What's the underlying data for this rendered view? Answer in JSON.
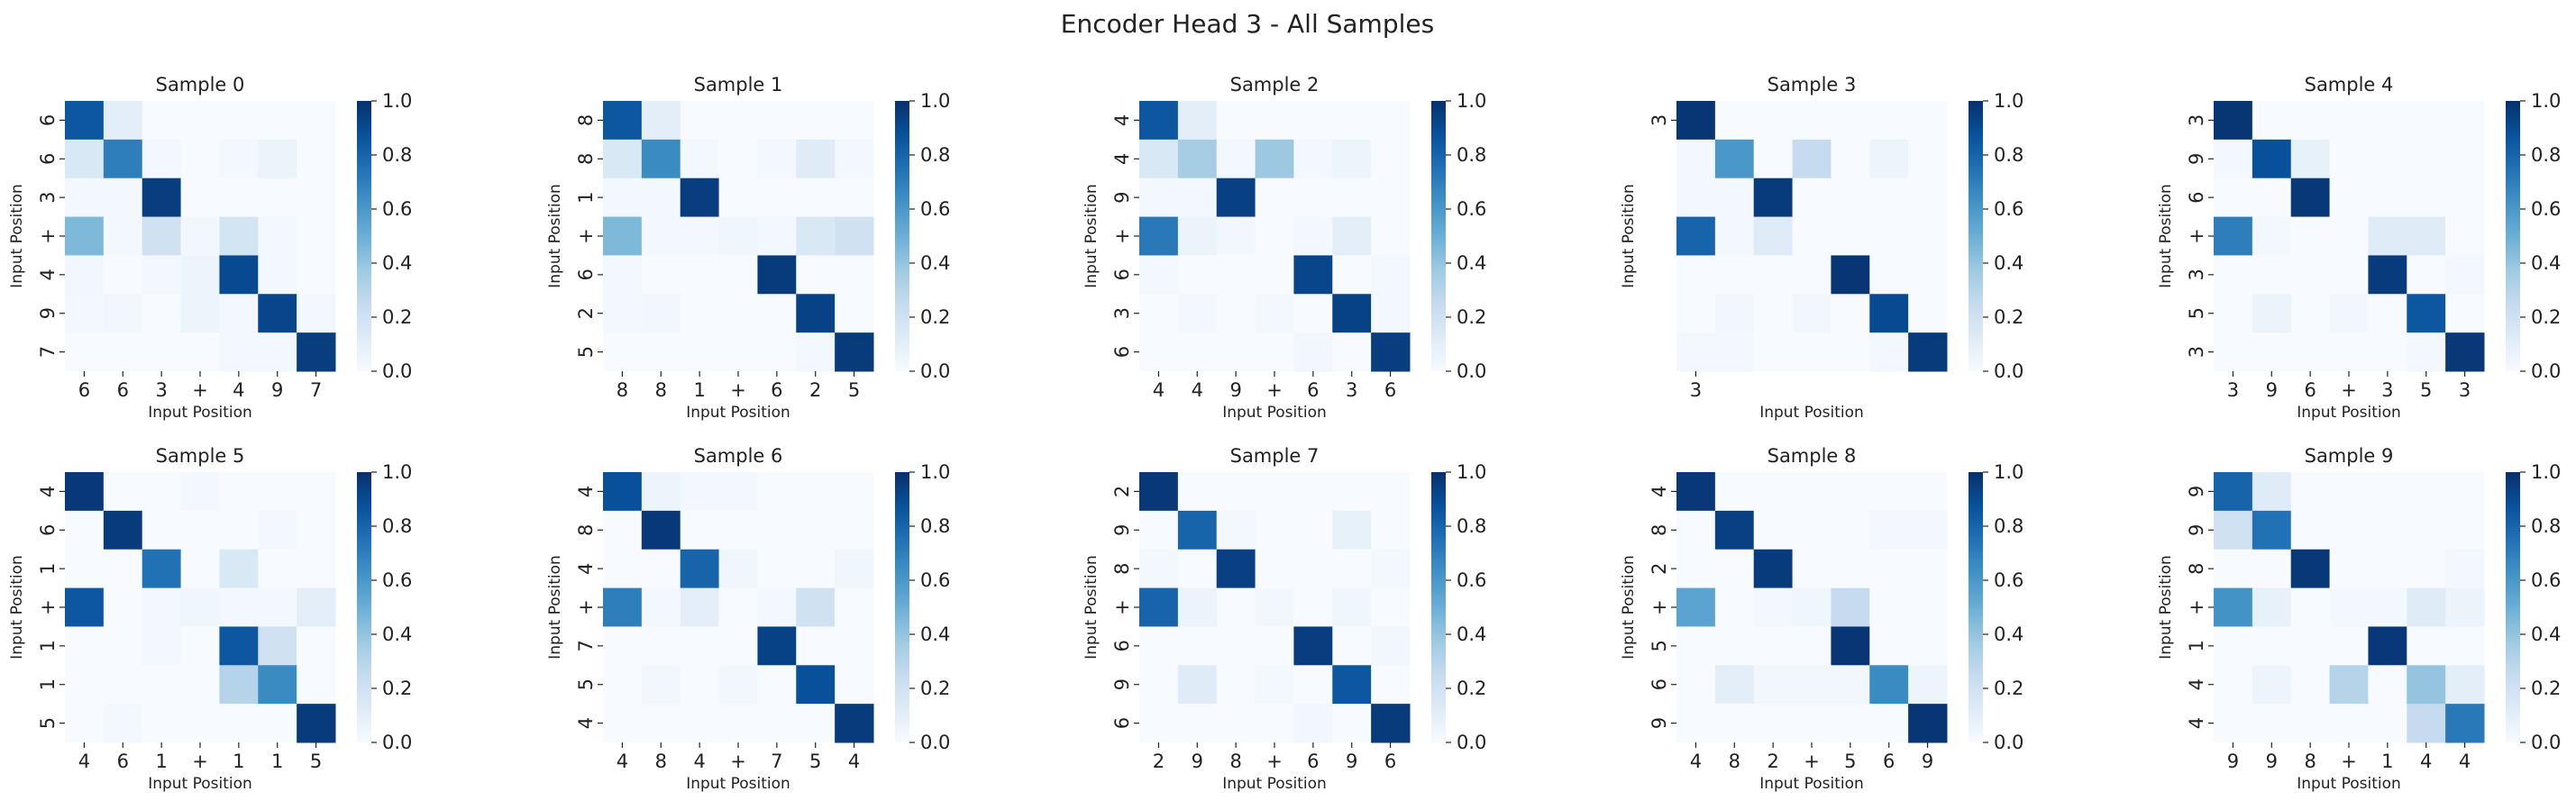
{
  "chart_data": {
    "type": "heatmap",
    "title": "Encoder Head 3 - All Samples",
    "xlabel": "Input Position",
    "ylabel": "Input Position",
    "colormap": "Blues",
    "vmin": 0,
    "vmax": 1,
    "colorbar_ticks": [
      "0.0",
      "0.2",
      "0.4",
      "0.6",
      "0.8",
      "1.0"
    ],
    "panels": [
      {
        "title": "Sample 0",
        "tokens": [
          "6",
          "6",
          "3",
          "+",
          "4",
          "9",
          "7"
        ],
        "matrix": [
          [
            0.85,
            0.1,
            0,
            0,
            0,
            0,
            0
          ],
          [
            0.15,
            0.7,
            0.02,
            0,
            0.02,
            0.06,
            0
          ],
          [
            0.02,
            0.02,
            0.95,
            0,
            0,
            0,
            0
          ],
          [
            0.45,
            0.02,
            0.2,
            0.03,
            0.18,
            0.02,
            0
          ],
          [
            0.03,
            0,
            0.02,
            0.05,
            0.9,
            0.02,
            0
          ],
          [
            0.02,
            0.03,
            0,
            0.05,
            0.02,
            0.92,
            0.02
          ],
          [
            0,
            0,
            0,
            0,
            0.02,
            0.02,
            0.95
          ]
        ]
      },
      {
        "title": "Sample 1",
        "tokens": [
          "8",
          "8",
          "1",
          "+",
          "6",
          "2",
          "5"
        ],
        "matrix": [
          [
            0.85,
            0.1,
            0,
            0,
            0,
            0,
            0
          ],
          [
            0.15,
            0.65,
            0.02,
            0,
            0.02,
            0.12,
            0.02
          ],
          [
            0.02,
            0.02,
            0.95,
            0,
            0,
            0,
            0
          ],
          [
            0.45,
            0.02,
            0.02,
            0.04,
            0.02,
            0.15,
            0.2
          ],
          [
            0.02,
            0,
            0,
            0,
            0.96,
            0,
            0
          ],
          [
            0.02,
            0.03,
            0,
            0,
            0,
            0.93,
            0
          ],
          [
            0,
            0,
            0,
            0,
            0,
            0.02,
            0.96
          ]
        ]
      },
      {
        "title": "Sample 2",
        "tokens": [
          "4",
          "4",
          "9",
          "+",
          "6",
          "3",
          "6"
        ],
        "matrix": [
          [
            0.85,
            0.1,
            0,
            0,
            0,
            0,
            0
          ],
          [
            0.15,
            0.35,
            0.02,
            0.38,
            0.02,
            0.05,
            0
          ],
          [
            0.02,
            0.02,
            0.94,
            0,
            0,
            0,
            0
          ],
          [
            0.72,
            0.06,
            0.03,
            0,
            0.02,
            0.1,
            0
          ],
          [
            0.02,
            0,
            0,
            0,
            0.92,
            0,
            0.02
          ],
          [
            0,
            0.02,
            0,
            0.02,
            0,
            0.93,
            0.02
          ],
          [
            0,
            0,
            0,
            0,
            0.03,
            0,
            0.95
          ]
        ]
      },
      {
        "title": "Sample 3",
        "tokens": [
          "3",
          "",
          "",
          "",
          "",
          "",
          ""
        ],
        "matrix": [
          [
            0.98,
            0,
            0,
            0,
            0,
            0,
            0
          ],
          [
            0.02,
            0.6,
            0,
            0.25,
            0,
            0.05,
            0
          ],
          [
            0.02,
            0.02,
            0.96,
            0,
            0,
            0,
            0
          ],
          [
            0.8,
            0.02,
            0.12,
            0,
            0,
            0,
            0
          ],
          [
            0,
            0,
            0,
            0,
            0.98,
            0,
            0
          ],
          [
            0,
            0.03,
            0,
            0.03,
            0,
            0.9,
            0
          ],
          [
            0.02,
            0.02,
            0,
            0,
            0,
            0.02,
            0.96
          ]
        ]
      },
      {
        "title": "Sample 4",
        "tokens": [
          "3",
          "9",
          "6",
          "+",
          "3",
          "5",
          "3"
        ],
        "matrix": [
          [
            0.98,
            0,
            0,
            0,
            0,
            0,
            0
          ],
          [
            0.02,
            0.88,
            0.08,
            0,
            0,
            0,
            0
          ],
          [
            0,
            0,
            0.97,
            0,
            0,
            0,
            0
          ],
          [
            0.7,
            0.02,
            0,
            0,
            0.12,
            0.12,
            0
          ],
          [
            0,
            0,
            0,
            0,
            0.96,
            0,
            0.02
          ],
          [
            0,
            0.06,
            0,
            0.03,
            0,
            0.85,
            0
          ],
          [
            0,
            0,
            0,
            0,
            0,
            0.02,
            0.97
          ]
        ]
      },
      {
        "title": "Sample 5",
        "tokens": [
          "4",
          "6",
          "1",
          "+",
          "1",
          "1",
          "5"
        ],
        "matrix": [
          [
            0.97,
            0,
            0,
            0.02,
            0,
            0,
            0
          ],
          [
            0,
            0.96,
            0,
            0,
            0,
            0.02,
            0
          ],
          [
            0,
            0,
            0.75,
            0,
            0.15,
            0,
            0
          ],
          [
            0.85,
            0,
            0.02,
            0.04,
            0.02,
            0.02,
            0.1
          ],
          [
            0,
            0,
            0.02,
            0,
            0.85,
            0.2,
            0
          ],
          [
            0,
            0,
            0,
            0,
            0.3,
            0.65,
            0
          ],
          [
            0,
            0.02,
            0,
            0,
            0,
            0,
            0.96
          ]
        ]
      },
      {
        "title": "Sample 6",
        "tokens": [
          "4",
          "8",
          "4",
          "+",
          "7",
          "5",
          "4"
        ],
        "matrix": [
          [
            0.88,
            0.05,
            0.02,
            0.02,
            0,
            0,
            0
          ],
          [
            0,
            0.97,
            0,
            0,
            0,
            0,
            0
          ],
          [
            0,
            0,
            0.8,
            0.04,
            0,
            0,
            0.04
          ],
          [
            0.7,
            0.02,
            0.1,
            0,
            0.02,
            0.2,
            0
          ],
          [
            0,
            0,
            0,
            0,
            0.93,
            0,
            0
          ],
          [
            0,
            0.03,
            0,
            0.03,
            0,
            0.88,
            0
          ],
          [
            0,
            0,
            0,
            0,
            0,
            0,
            0.96
          ]
        ]
      },
      {
        "title": "Sample 7",
        "tokens": [
          "2",
          "9",
          "8",
          "+",
          "6",
          "9",
          "6"
        ],
        "matrix": [
          [
            0.97,
            0,
            0,
            0,
            0,
            0,
            0
          ],
          [
            0,
            0.8,
            0.02,
            0,
            0,
            0.08,
            0
          ],
          [
            0.02,
            0,
            0.94,
            0,
            0,
            0,
            0.02
          ],
          [
            0.8,
            0.06,
            0,
            0.03,
            0,
            0.04,
            0
          ],
          [
            0,
            0,
            0,
            0,
            0.95,
            0,
            0.03
          ],
          [
            0,
            0.12,
            0,
            0.02,
            0,
            0.85,
            0
          ],
          [
            0,
            0,
            0,
            0,
            0.03,
            0,
            0.96
          ]
        ]
      },
      {
        "title": "Sample 8",
        "tokens": [
          "4",
          "8",
          "2",
          "+",
          "5",
          "6",
          "9"
        ],
        "matrix": [
          [
            0.97,
            0,
            0,
            0,
            0,
            0,
            0
          ],
          [
            0,
            0.94,
            0,
            0,
            0,
            0.02,
            0.02
          ],
          [
            0,
            0,
            0.96,
            0,
            0,
            0,
            0
          ],
          [
            0.55,
            0,
            0.02,
            0.04,
            0.25,
            0,
            0
          ],
          [
            0,
            0,
            0,
            0,
            0.98,
            0,
            0
          ],
          [
            0,
            0.1,
            0.03,
            0.03,
            0.03,
            0.65,
            0.05
          ],
          [
            0,
            0,
            0,
            0,
            0,
            0,
            0.98
          ]
        ]
      },
      {
        "title": "Sample 9",
        "tokens": [
          "9",
          "9",
          "8",
          "+",
          "1",
          "4",
          "4"
        ],
        "matrix": [
          [
            0.8,
            0.12,
            0,
            0,
            0,
            0,
            0
          ],
          [
            0.2,
            0.75,
            0,
            0,
            0,
            0,
            0
          ],
          [
            0,
            0,
            0.97,
            0,
            0,
            0,
            0.02
          ],
          [
            0.62,
            0.08,
            0,
            0.02,
            0.02,
            0.12,
            0.06
          ],
          [
            0,
            0,
            0,
            0,
            0.97,
            0,
            0
          ],
          [
            0,
            0.05,
            0,
            0.3,
            0,
            0.4,
            0.1
          ],
          [
            0,
            0,
            0,
            0,
            0,
            0.25,
            0.72
          ]
        ]
      }
    ]
  }
}
